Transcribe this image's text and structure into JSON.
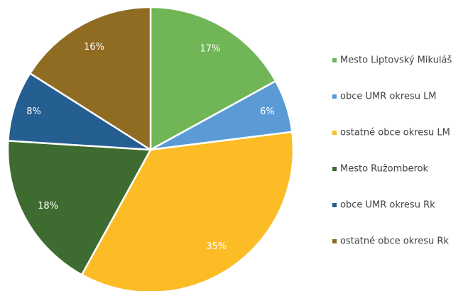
{
  "chart_data": {
    "type": "pie",
    "categories": [
      "Mesto Liptovský Mikuláš",
      "obce UMR okresu LM",
      "ostatné obce okresu LM",
      "Mesto Ružomberok",
      "obce UMR okresu Rk",
      "ostatné obce okresu Rk"
    ],
    "values": [
      17,
      6,
      35,
      18,
      8,
      16
    ],
    "value_labels": [
      "17%",
      "6%",
      "35%",
      "18%",
      "8%",
      "16%"
    ],
    "colors": [
      "#70b556",
      "#5b9bd5",
      "#fbbc26",
      "#3e6b30",
      "#255e91",
      "#8f6c22"
    ],
    "legend": "right"
  }
}
